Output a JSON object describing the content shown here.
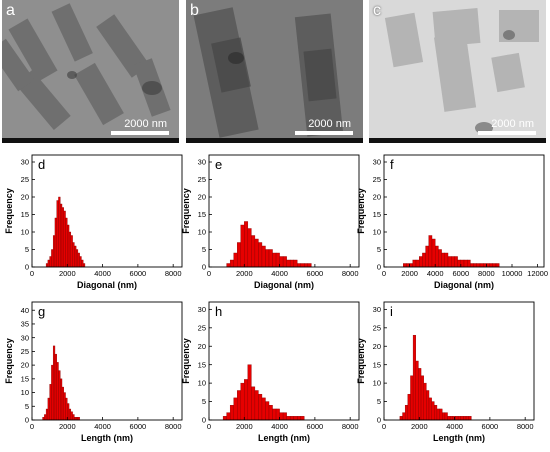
{
  "tem_panels": [
    {
      "letter": "a",
      "scale": "2000 nm",
      "tone": "#8f8f8f"
    },
    {
      "letter": "b",
      "scale": "2000 nm",
      "tone": "#7c7c7c"
    },
    {
      "letter": "c",
      "scale": "2000 nm",
      "tone": "#d9d9d9"
    }
  ],
  "colors": {
    "bar_fill": "#e60000",
    "bar_stroke": "#8b0000",
    "axis": "#000000"
  },
  "chart_data": [
    {
      "letter": "d",
      "type": "bar",
      "xlabel": "Diagonal (nm)",
      "ylabel": "Frequency",
      "xlim": [
        0,
        8500
      ],
      "xticks": [
        0,
        2000,
        4000,
        6000,
        8000
      ],
      "ylim": [
        0,
        32
      ],
      "yticks": [
        0,
        5,
        10,
        15,
        20,
        25,
        30
      ],
      "bin_start": 800,
      "bin_width": 100,
      "values": [
        1,
        2,
        3,
        5,
        9,
        14,
        19,
        20,
        18,
        17,
        16,
        14,
        12,
        10,
        9,
        7,
        6,
        5,
        4,
        3,
        2,
        1
      ]
    },
    {
      "letter": "e",
      "type": "bar",
      "xlabel": "Diagonal (nm)",
      "ylabel": "Frequency",
      "xlim": [
        0,
        8500
      ],
      "xticks": [
        0,
        2000,
        4000,
        6000,
        8000
      ],
      "ylim": [
        0,
        32
      ],
      "yticks": [
        0,
        5,
        10,
        15,
        20,
        25,
        30
      ],
      "bin_start": 1000,
      "bin_width": 200,
      "values": [
        1,
        2,
        4,
        7,
        12,
        13,
        11,
        9,
        8,
        7,
        6,
        5,
        5,
        4,
        4,
        3,
        3,
        2,
        2,
        2,
        1,
        1,
        1,
        1
      ]
    },
    {
      "letter": "f",
      "type": "bar",
      "xlabel": "Diagonal (nm)",
      "ylabel": "Frequency",
      "xlim": [
        0,
        12500
      ],
      "xticks": [
        0,
        2000,
        4000,
        6000,
        8000,
        10000,
        12000
      ],
      "ylim": [
        0,
        32
      ],
      "yticks": [
        0,
        5,
        10,
        15,
        20,
        25,
        30
      ],
      "bin_start": 1500,
      "bin_width": 250,
      "values": [
        1,
        1,
        1,
        2,
        2,
        3,
        4,
        6,
        9,
        8,
        6,
        5,
        4,
        4,
        3,
        3,
        3,
        2,
        2,
        2,
        2,
        1,
        1,
        1,
        1,
        1,
        1,
        1,
        1,
        1
      ]
    },
    {
      "letter": "g",
      "type": "bar",
      "xlabel": "Length (nm)",
      "ylabel": "Frequency",
      "xlim": [
        0,
        8500
      ],
      "xticks": [
        0,
        2000,
        4000,
        6000,
        8000
      ],
      "ylim": [
        0,
        43
      ],
      "yticks": [
        0,
        5,
        10,
        15,
        20,
        25,
        30,
        35,
        40
      ],
      "bin_start": 600,
      "bin_width": 100,
      "values": [
        1,
        2,
        4,
        8,
        13,
        20,
        27,
        24,
        21,
        18,
        15,
        12,
        10,
        8,
        6,
        4,
        3,
        2,
        1,
        1,
        1
      ]
    },
    {
      "letter": "h",
      "type": "bar",
      "xlabel": "Length (nm)",
      "ylabel": "Frequency",
      "xlim": [
        0,
        8500
      ],
      "xticks": [
        0,
        2000,
        4000,
        6000,
        8000
      ],
      "ylim": [
        0,
        32
      ],
      "yticks": [
        0,
        5,
        10,
        15,
        20,
        25,
        30
      ],
      "bin_start": 800,
      "bin_width": 200,
      "values": [
        1,
        2,
        4,
        6,
        8,
        10,
        11,
        15,
        9,
        8,
        7,
        6,
        5,
        4,
        3,
        3,
        2,
        2,
        1,
        1,
        1,
        1,
        1
      ]
    },
    {
      "letter": "i",
      "type": "bar",
      "xlabel": "Length (nm)",
      "ylabel": "Frequency",
      "xlim": [
        0,
        8500
      ],
      "xticks": [
        0,
        2000,
        4000,
        6000,
        8000
      ],
      "ylim": [
        0,
        32
      ],
      "yticks": [
        0,
        5,
        10,
        15,
        20,
        25,
        30
      ],
      "bin_start": 900,
      "bin_width": 150,
      "values": [
        1,
        2,
        4,
        7,
        12,
        23,
        16,
        14,
        12,
        10,
        8,
        6,
        5,
        4,
        3,
        3,
        2,
        2,
        1,
        1,
        1,
        1,
        1,
        1,
        1,
        1,
        1
      ]
    }
  ]
}
